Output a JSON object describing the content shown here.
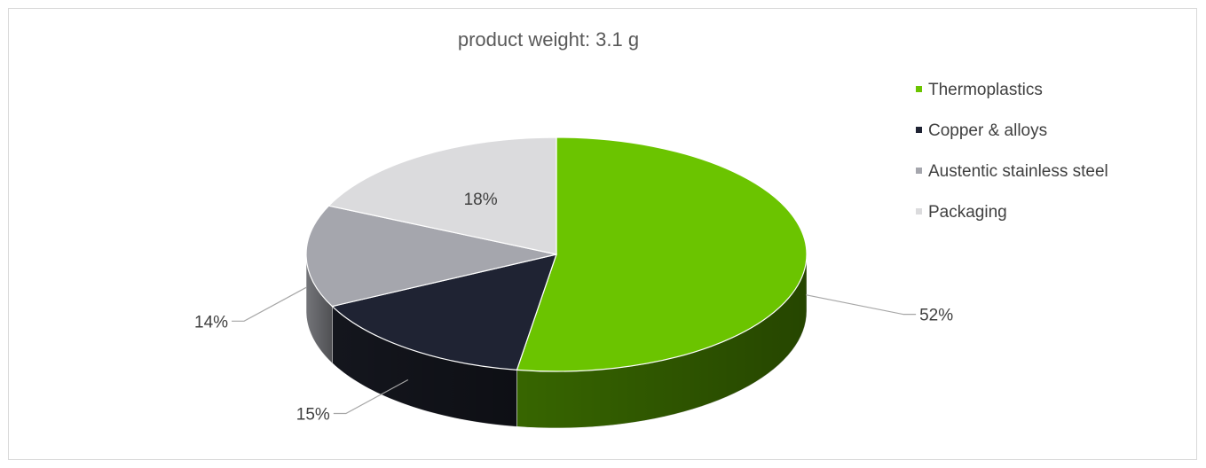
{
  "chart_data": {
    "type": "pie",
    "title": "product weight: 3.1  g",
    "categories": [
      "Thermoplastics",
      "Copper & alloys",
      "Austentic stainless steel",
      "Packaging"
    ],
    "values": [
      52,
      15,
      14,
      18
    ],
    "labels": [
      "52%",
      "15%",
      "14%",
      "18%"
    ],
    "colors": [
      "#6bc400",
      "#1f2333",
      "#a5a6ad",
      "#dbdbdd"
    ],
    "side_colors": [
      "#3a6b00",
      "#15171f",
      "#7a7b80",
      "#a9a9ab"
    ],
    "legend_position": "right",
    "style": "3d"
  }
}
